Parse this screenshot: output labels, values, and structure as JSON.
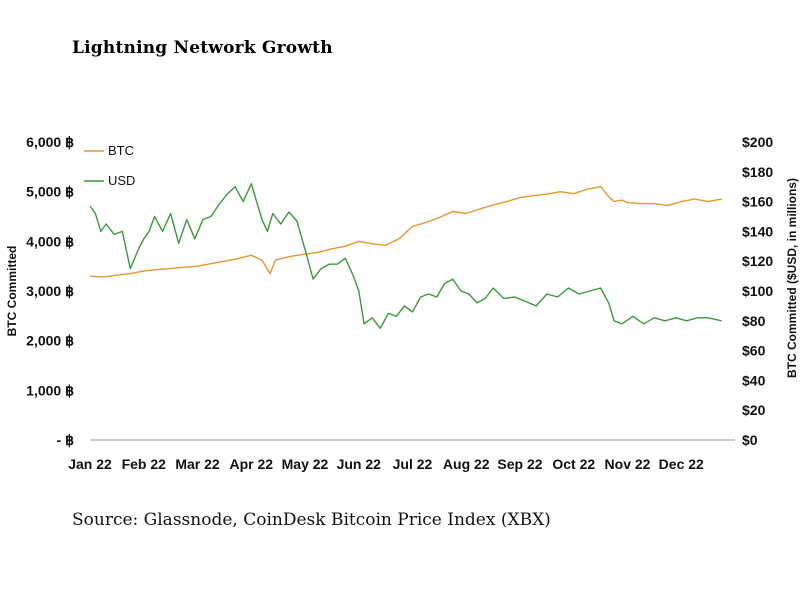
{
  "chart_data": {
    "type": "line",
    "title": "Lightning Network Growth",
    "source": "Source: Glassnode, CoinDesk Bitcoin Price Index (XBX)",
    "x_ticks": [
      "Jan 22",
      "Feb 22",
      "Mar 22",
      "Apr 22",
      "May 22",
      "Jun 22",
      "Jul 22",
      "Aug 22",
      "Sep 22",
      "Oct 22",
      "Nov 22",
      "Dec 22"
    ],
    "y_left": {
      "label": "BTC Committed",
      "range": [
        0,
        6000
      ],
      "ticks": [
        "-    ฿",
        "1,000 ฿",
        "2,000 ฿",
        "3,000 ฿",
        "4,000 ฿",
        "5,000 ฿",
        "6,000 ฿"
      ]
    },
    "y_right": {
      "label": "BTC Committed ($USD, in millions)",
      "range": [
        0,
        200
      ],
      "ticks": [
        "$0",
        "$20",
        "$40",
        "$60",
        "$80",
        "$100",
        "$120",
        "$140",
        "$160",
        "$180",
        "$200"
      ]
    },
    "series": [
      {
        "name": "BTC",
        "axis": "left",
        "color": "#e8962e",
        "x": [
          0,
          0.25,
          0.5,
          0.75,
          1,
          1.25,
          1.5,
          1.75,
          2,
          2.25,
          2.5,
          2.75,
          3,
          3.2,
          3.35,
          3.45,
          3.55,
          3.75,
          4,
          4.25,
          4.5,
          4.75,
          5,
          5.25,
          5.5,
          5.75,
          6,
          6.25,
          6.5,
          6.75,
          7,
          7.25,
          7.5,
          7.75,
          8,
          8.25,
          8.5,
          8.75,
          9,
          9.25,
          9.5,
          9.65,
          9.75,
          9.9,
          10,
          10.25,
          10.5,
          10.75,
          11,
          11.25,
          11.5,
          11.75
        ],
        "values": [
          3300,
          3280,
          3320,
          3350,
          3400,
          3430,
          3450,
          3480,
          3500,
          3550,
          3600,
          3650,
          3720,
          3620,
          3350,
          3620,
          3650,
          3700,
          3740,
          3780,
          3850,
          3900,
          4000,
          3950,
          3920,
          4050,
          4300,
          4380,
          4480,
          4600,
          4560,
          4650,
          4730,
          4800,
          4880,
          4920,
          4950,
          5000,
          4960,
          5050,
          5100,
          4900,
          4800,
          4830,
          4780,
          4760,
          4760,
          4720,
          4800,
          4850,
          4800,
          4850
        ]
      },
      {
        "name": "USD",
        "axis": "right",
        "color": "#3a9a3a",
        "x": [
          0,
          0.1,
          0.2,
          0.3,
          0.45,
          0.6,
          0.75,
          0.9,
          1,
          1.1,
          1.2,
          1.35,
          1.5,
          1.65,
          1.8,
          1.95,
          2.1,
          2.25,
          2.4,
          2.55,
          2.7,
          2.85,
          3,
          3.1,
          3.2,
          3.3,
          3.4,
          3.55,
          3.7,
          3.85,
          4,
          4.15,
          4.3,
          4.45,
          4.6,
          4.75,
          4.9,
          5,
          5.1,
          5.25,
          5.4,
          5.55,
          5.7,
          5.85,
          6,
          6.15,
          6.3,
          6.45,
          6.6,
          6.75,
          6.9,
          7.05,
          7.2,
          7.35,
          7.5,
          7.7,
          7.9,
          8.1,
          8.3,
          8.5,
          8.7,
          8.9,
          9.1,
          9.3,
          9.5,
          9.65,
          9.75,
          9.9,
          10.1,
          10.3,
          10.5,
          10.7,
          10.9,
          11.1,
          11.3,
          11.5,
          11.75
        ],
        "values": [
          157,
          152,
          140,
          145,
          138,
          140,
          115,
          128,
          135,
          140,
          150,
          140,
          152,
          132,
          148,
          135,
          148,
          150,
          158,
          165,
          170,
          160,
          172,
          160,
          148,
          140,
          152,
          145,
          153,
          147,
          128,
          108,
          115,
          118,
          118,
          122,
          110,
          100,
          78,
          82,
          75,
          85,
          83,
          90,
          86,
          96,
          98,
          96,
          105,
          108,
          100,
          98,
          92,
          95,
          102,
          95,
          96,
          93,
          90,
          98,
          96,
          102,
          98,
          100,
          102,
          92,
          80,
          78,
          83,
          78,
          82,
          80,
          82,
          80,
          82,
          82,
          80
        ]
      }
    ],
    "legend": [
      {
        "label": "BTC",
        "color": "#e8962e"
      },
      {
        "label": "USD",
        "color": "#3a9a3a"
      }
    ]
  }
}
